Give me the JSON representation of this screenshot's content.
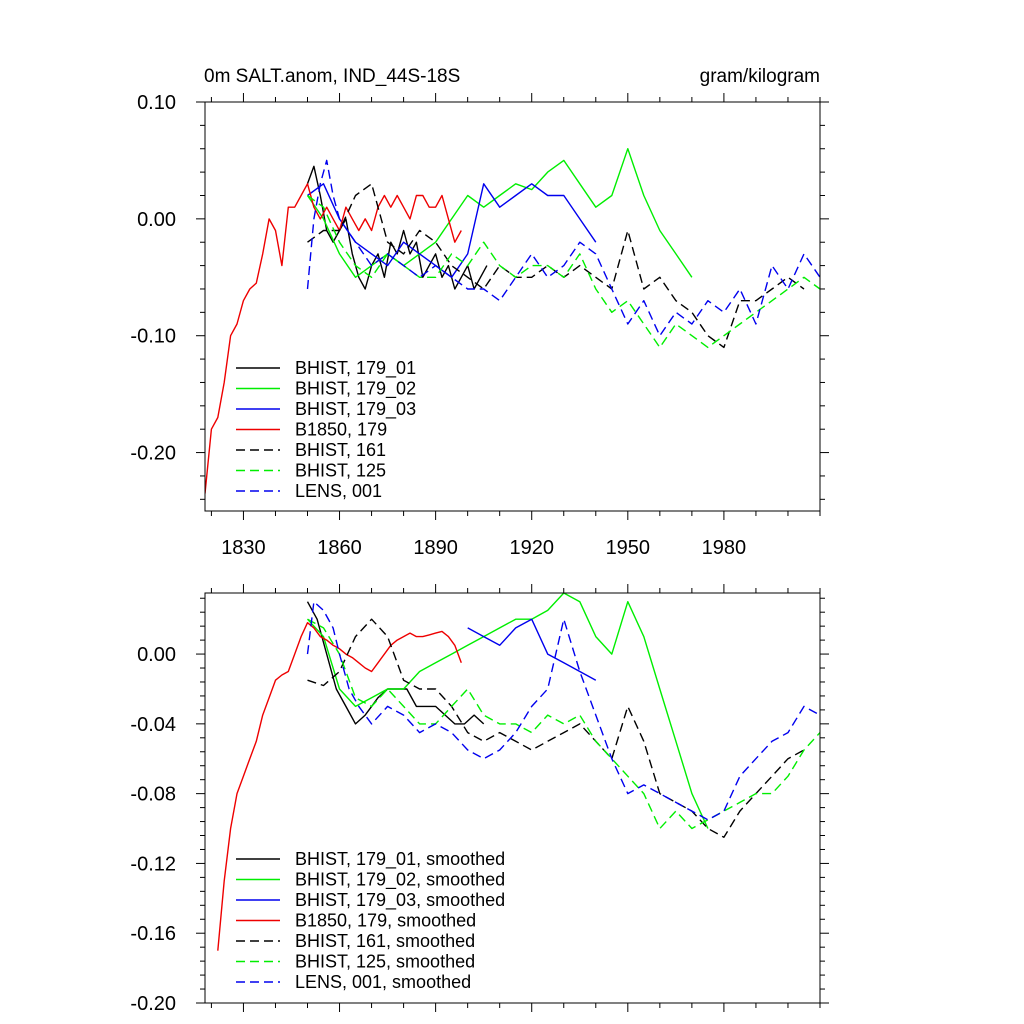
{
  "chart_data": [
    {
      "type": "line",
      "title": "0m SALT.anom, IND_44S-18S",
      "units": "gram/kilogram",
      "xlim": [
        1818,
        2010
      ],
      "ylim": [
        -0.25,
        0.1
      ],
      "xticks": [
        1830,
        1860,
        1890,
        1920,
        1950,
        1980
      ],
      "xtick_labels": [
        "1830",
        "1860",
        "1890",
        "1920",
        "1950",
        "1980"
      ],
      "yticks": [
        0.1,
        0.0,
        -0.1,
        -0.2
      ],
      "ytick_labels": [
        "0.10",
        "0.00",
        "-0.10",
        "-0.20"
      ],
      "legend_position": "bottom-left",
      "series": [
        {
          "name": "BHIST, 179_01",
          "color": "#000000",
          "dash": false,
          "x": [
            1850,
            1852,
            1854,
            1856,
            1858,
            1860,
            1862,
            1864,
            1866,
            1868,
            1870,
            1872,
            1874,
            1876,
            1878,
            1880,
            1882,
            1884,
            1886,
            1888,
            1890,
            1892,
            1894,
            1896,
            1898,
            1900,
            1902,
            1904,
            1906
          ],
          "y": [
            0.03,
            0.045,
            0.02,
            -0.01,
            -0.02,
            -0.01,
            0.0,
            -0.03,
            -0.05,
            -0.06,
            -0.04,
            -0.03,
            -0.05,
            -0.02,
            -0.03,
            -0.01,
            -0.03,
            -0.02,
            -0.05,
            -0.04,
            -0.03,
            -0.05,
            -0.04,
            -0.06,
            -0.05,
            -0.04,
            -0.06,
            -0.05,
            -0.04
          ]
        },
        {
          "name": "BHIST, 179_02",
          "color": "#00ee00",
          "dash": false,
          "x": [
            1850,
            1855,
            1860,
            1865,
            1870,
            1875,
            1880,
            1885,
            1890,
            1895,
            1900,
            1905,
            1910,
            1915,
            1920,
            1925,
            1930,
            1935,
            1940,
            1945,
            1950,
            1955,
            1960,
            1965,
            1970
          ],
          "y": [
            0.02,
            0.0,
            -0.03,
            -0.05,
            -0.04,
            -0.03,
            -0.04,
            -0.03,
            -0.02,
            0.0,
            0.02,
            0.01,
            0.02,
            0.03,
            0.025,
            0.04,
            0.05,
            0.03,
            0.01,
            0.02,
            0.06,
            0.02,
            -0.01,
            -0.03,
            -0.05
          ]
        },
        {
          "name": "BHIST, 179_03",
          "color": "#0000ee",
          "dash": false,
          "x": [
            1850,
            1855,
            1860,
            1865,
            1870,
            1875,
            1880,
            1885,
            1890,
            1895,
            1900,
            1905,
            1910,
            1915,
            1920,
            1925,
            1930,
            1935,
            1940
          ],
          "y": [
            0.02,
            0.03,
            0.0,
            -0.02,
            -0.03,
            -0.04,
            -0.02,
            -0.03,
            -0.04,
            -0.05,
            -0.03,
            0.03,
            0.01,
            0.02,
            0.03,
            0.02,
            0.02,
            0.0,
            -0.02
          ]
        },
        {
          "name": "B1850, 179",
          "color": "#ee0000",
          "dash": false,
          "x": [
            1818,
            1820,
            1822,
            1824,
            1826,
            1828,
            1830,
            1832,
            1834,
            1836,
            1838,
            1840,
            1842,
            1844,
            1846,
            1848,
            1850,
            1852,
            1854,
            1856,
            1858,
            1860,
            1862,
            1864,
            1866,
            1868,
            1870,
            1872,
            1874,
            1876,
            1878,
            1880,
            1882,
            1884,
            1886,
            1888,
            1890,
            1892,
            1894,
            1896,
            1898
          ],
          "y": [
            -0.235,
            -0.18,
            -0.17,
            -0.14,
            -0.1,
            -0.09,
            -0.07,
            -0.06,
            -0.055,
            -0.03,
            0.0,
            -0.01,
            -0.04,
            0.01,
            0.01,
            0.02,
            0.03,
            0.01,
            0.0,
            0.01,
            0.0,
            -0.01,
            0.01,
            0.0,
            -0.01,
            0.0,
            -0.01,
            0.01,
            0.02,
            0.01,
            0.02,
            0.01,
            0.0,
            0.02,
            0.02,
            0.01,
            0.01,
            0.02,
            0.0,
            -0.02,
            -0.01
          ]
        },
        {
          "name": "BHIST, 161",
          "color": "#000000",
          "dash": true,
          "x": [
            1850,
            1855,
            1860,
            1865,
            1870,
            1875,
            1880,
            1885,
            1890,
            1895,
            1900,
            1905,
            1910,
            1915,
            1920,
            1925,
            1930,
            1935,
            1940,
            1945,
            1950,
            1955,
            1960,
            1965,
            1970,
            1975,
            1980,
            1985,
            1990,
            1995,
            2000,
            2005
          ],
          "y": [
            -0.02,
            -0.01,
            -0.01,
            0.02,
            0.03,
            -0.02,
            -0.03,
            -0.01,
            -0.02,
            -0.04,
            -0.05,
            -0.06,
            -0.04,
            -0.05,
            -0.05,
            -0.04,
            -0.05,
            -0.04,
            -0.05,
            -0.06,
            -0.01,
            -0.06,
            -0.05,
            -0.07,
            -0.08,
            -0.1,
            -0.11,
            -0.07,
            -0.07,
            -0.06,
            -0.05,
            -0.06
          ]
        },
        {
          "name": "BHIST, 125",
          "color": "#00ee00",
          "dash": true,
          "x": [
            1850,
            1855,
            1860,
            1865,
            1870,
            1875,
            1880,
            1885,
            1890,
            1895,
            1900,
            1905,
            1910,
            1915,
            1920,
            1925,
            1930,
            1935,
            1940,
            1945,
            1950,
            1955,
            1960,
            1965,
            1970,
            1975,
            1980,
            1985,
            1990,
            1995,
            2000,
            2005,
            2010
          ],
          "y": [
            0.02,
            0.01,
            -0.02,
            -0.04,
            -0.05,
            -0.03,
            -0.04,
            -0.05,
            -0.05,
            -0.03,
            -0.04,
            -0.02,
            -0.04,
            -0.05,
            -0.04,
            -0.04,
            -0.05,
            -0.03,
            -0.06,
            -0.08,
            -0.07,
            -0.09,
            -0.11,
            -0.09,
            -0.1,
            -0.11,
            -0.1,
            -0.09,
            -0.08,
            -0.07,
            -0.06,
            -0.05,
            -0.06
          ]
        },
        {
          "name": "LENS, 001",
          "color": "#0000ee",
          "dash": true,
          "x": [
            1850,
            1852,
            1854,
            1856,
            1858,
            1860,
            1865,
            1870,
            1875,
            1880,
            1885,
            1890,
            1895,
            1900,
            1905,
            1910,
            1915,
            1920,
            1925,
            1930,
            1935,
            1940,
            1945,
            1950,
            1955,
            1960,
            1965,
            1970,
            1975,
            1980,
            1985,
            1990,
            1995,
            2000,
            2005,
            2010
          ],
          "y": [
            -0.06,
            0.0,
            0.03,
            0.05,
            0.02,
            0.0,
            -0.02,
            -0.04,
            -0.03,
            -0.04,
            -0.05,
            -0.04,
            -0.05,
            -0.06,
            -0.06,
            -0.07,
            -0.05,
            -0.03,
            -0.05,
            -0.04,
            -0.02,
            -0.03,
            -0.06,
            -0.09,
            -0.07,
            -0.1,
            -0.08,
            -0.09,
            -0.07,
            -0.08,
            -0.06,
            -0.09,
            -0.04,
            -0.06,
            -0.03,
            -0.05
          ]
        }
      ]
    },
    {
      "type": "line",
      "title": "",
      "xlim": [
        1818,
        2010
      ],
      "ylim": [
        -0.2,
        0.035
      ],
      "xticks": [
        1830,
        1860,
        1890,
        1920,
        1950,
        1980
      ],
      "yticks": [
        0.0,
        -0.04,
        -0.08,
        -0.12,
        -0.16,
        -0.2
      ],
      "ytick_labels": [
        "0.00",
        "-0.04",
        "-0.08",
        "-0.12",
        "-0.16",
        "-0.20"
      ],
      "legend_position": "bottom-left",
      "series": [
        {
          "name": "BHIST, 179_01, smoothed",
          "color": "#000000",
          "dash": false,
          "x": [
            1850,
            1853,
            1856,
            1859,
            1862,
            1865,
            1868,
            1870,
            1872,
            1875,
            1878,
            1881,
            1884,
            1887,
            1890,
            1893,
            1896,
            1899,
            1902,
            1905
          ],
          "y": [
            0.03,
            0.02,
            0.0,
            -0.02,
            -0.03,
            -0.04,
            -0.035,
            -0.03,
            -0.025,
            -0.02,
            -0.02,
            -0.02,
            -0.03,
            -0.03,
            -0.03,
            -0.035,
            -0.04,
            -0.04,
            -0.035,
            -0.04
          ]
        },
        {
          "name": "BHIST, 179_02, smoothed",
          "color": "#00ee00",
          "dash": false,
          "x": [
            1850,
            1855,
            1860,
            1865,
            1870,
            1875,
            1880,
            1885,
            1890,
            1895,
            1900,
            1905,
            1910,
            1915,
            1920,
            1925,
            1930,
            1935,
            1940,
            1945,
            1950,
            1955,
            1960,
            1965,
            1970,
            1975
          ],
          "y": [
            0.02,
            0.01,
            -0.02,
            -0.03,
            -0.025,
            -0.02,
            -0.02,
            -0.01,
            -0.005,
            0.0,
            0.005,
            0.01,
            0.015,
            0.02,
            0.02,
            0.025,
            0.035,
            0.03,
            0.01,
            0.0,
            0.03,
            0.01,
            -0.02,
            -0.05,
            -0.08,
            -0.1
          ]
        },
        {
          "name": "BHIST, 179_03, smoothed",
          "color": "#0000ee",
          "dash": false,
          "x": [
            1900,
            1905,
            1910,
            1915,
            1920,
            1925,
            1930,
            1935,
            1940
          ],
          "y": [
            0.015,
            0.01,
            0.005,
            0.015,
            0.02,
            0.0,
            -0.005,
            -0.01,
            -0.015
          ]
        },
        {
          "name": "B1850, 179, smoothed",
          "color": "#ee0000",
          "dash": false,
          "x": [
            1822,
            1824,
            1826,
            1828,
            1830,
            1832,
            1834,
            1836,
            1838,
            1840,
            1842,
            1844,
            1846,
            1848,
            1850,
            1852,
            1854,
            1856,
            1858,
            1860,
            1862,
            1864,
            1866,
            1868,
            1870,
            1872,
            1874,
            1876,
            1878,
            1880,
            1882,
            1884,
            1886,
            1888,
            1890,
            1892,
            1894,
            1896,
            1898
          ],
          "y": [
            -0.17,
            -0.13,
            -0.1,
            -0.08,
            -0.07,
            -0.06,
            -0.05,
            -0.035,
            -0.025,
            -0.015,
            -0.012,
            -0.01,
            0.0,
            0.01,
            0.018,
            0.015,
            0.01,
            0.008,
            0.005,
            0.003,
            0.0,
            -0.002,
            -0.005,
            -0.008,
            -0.01,
            -0.005,
            0.0,
            0.005,
            0.008,
            0.01,
            0.012,
            0.01,
            0.01,
            0.011,
            0.012,
            0.013,
            0.01,
            0.005,
            -0.005
          ]
        },
        {
          "name": "BHIST, 161, smoothed",
          "color": "#000000",
          "dash": true,
          "x": [
            1850,
            1855,
            1860,
            1865,
            1870,
            1875,
            1880,
            1885,
            1890,
            1895,
            1900,
            1905,
            1910,
            1915,
            1920,
            1925,
            1930,
            1935,
            1940,
            1945,
            1950,
            1955,
            1960,
            1965,
            1970,
            1975,
            1980,
            1985,
            1990,
            1995,
            2000,
            2005
          ],
          "y": [
            -0.015,
            -0.018,
            -0.01,
            0.01,
            0.02,
            0.01,
            -0.015,
            -0.02,
            -0.02,
            -0.03,
            -0.045,
            -0.05,
            -0.045,
            -0.05,
            -0.055,
            -0.05,
            -0.045,
            -0.04,
            -0.05,
            -0.06,
            -0.03,
            -0.05,
            -0.08,
            -0.085,
            -0.09,
            -0.1,
            -0.105,
            -0.09,
            -0.08,
            -0.07,
            -0.06,
            -0.055
          ]
        },
        {
          "name": "BHIST, 125, smoothed",
          "color": "#00ee00",
          "dash": true,
          "x": [
            1850,
            1855,
            1860,
            1865,
            1870,
            1875,
            1880,
            1885,
            1890,
            1895,
            1900,
            1905,
            1910,
            1915,
            1920,
            1925,
            1930,
            1935,
            1940,
            1945,
            1950,
            1955,
            1960,
            1965,
            1970,
            1975,
            1980,
            1985,
            1990,
            1995,
            2000,
            2005,
            2010
          ],
          "y": [
            0.02,
            0.015,
            0.0,
            -0.025,
            -0.03,
            -0.02,
            -0.03,
            -0.04,
            -0.04,
            -0.03,
            -0.02,
            -0.035,
            -0.04,
            -0.04,
            -0.045,
            -0.035,
            -0.04,
            -0.035,
            -0.05,
            -0.06,
            -0.07,
            -0.08,
            -0.1,
            -0.09,
            -0.1,
            -0.095,
            -0.09,
            -0.085,
            -0.08,
            -0.08,
            -0.07,
            -0.055,
            -0.045
          ]
        },
        {
          "name": "LENS, 001, smoothed",
          "color": "#0000ee",
          "dash": true,
          "x": [
            1850,
            1852,
            1855,
            1858,
            1860,
            1863,
            1866,
            1870,
            1875,
            1880,
            1885,
            1890,
            1895,
            1900,
            1905,
            1910,
            1915,
            1920,
            1925,
            1930,
            1935,
            1940,
            1945,
            1950,
            1955,
            1960,
            1965,
            1970,
            1975,
            1980,
            1985,
            1990,
            1995,
            2000,
            2005,
            2010
          ],
          "y": [
            0.0,
            0.03,
            0.025,
            0.015,
            0.0,
            -0.02,
            -0.03,
            -0.04,
            -0.03,
            -0.035,
            -0.045,
            -0.04,
            -0.045,
            -0.055,
            -0.06,
            -0.055,
            -0.045,
            -0.03,
            -0.02,
            0.02,
            -0.01,
            -0.035,
            -0.06,
            -0.08,
            -0.075,
            -0.08,
            -0.085,
            -0.09,
            -0.095,
            -0.09,
            -0.07,
            -0.06,
            -0.05,
            -0.045,
            -0.03,
            -0.035
          ]
        }
      ]
    }
  ]
}
